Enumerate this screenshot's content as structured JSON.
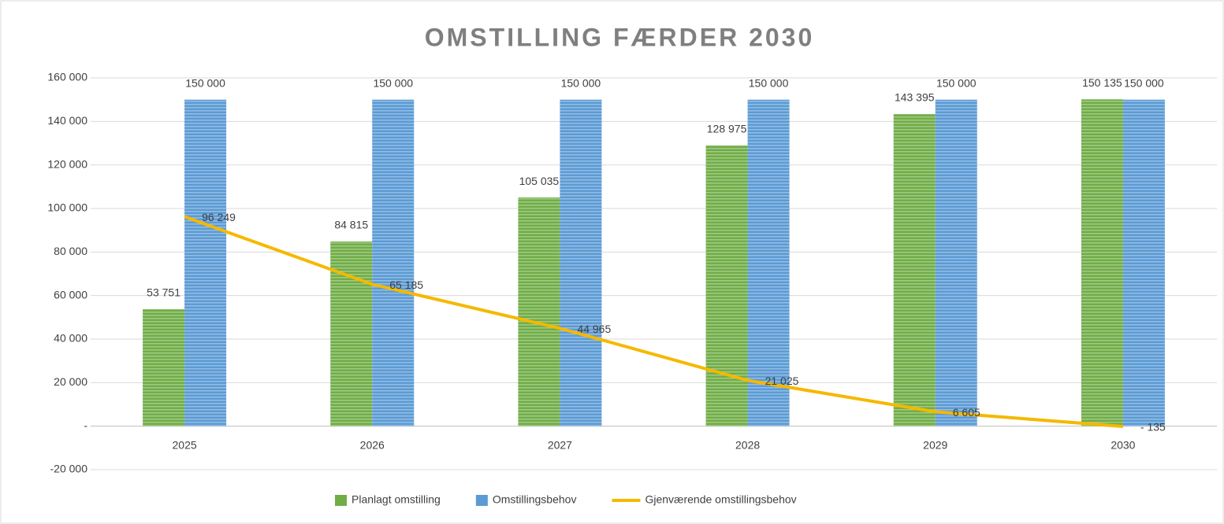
{
  "chart_data": {
    "type": "bar",
    "title": "OMSTILLING FÆRDER 2030",
    "categories": [
      "2025",
      "2026",
      "2027",
      "2028",
      "2029",
      "2030"
    ],
    "series": [
      {
        "name": "Planlagt omstilling",
        "type": "bar",
        "color": "#70ad47",
        "values": [
          53751,
          84815,
          105035,
          128975,
          143395,
          150135
        ],
        "value_labels": [
          "53 751",
          "84 815",
          "105 035",
          "128 975",
          "143 395",
          "150 135"
        ]
      },
      {
        "name": "Omstillingsbehov",
        "type": "bar",
        "color": "#5b9bd5",
        "values": [
          150000,
          150000,
          150000,
          150000,
          150000,
          150000
        ],
        "value_labels": [
          "150 000",
          "150 000",
          "150 000",
          "150 000",
          "150 000",
          "150 000"
        ]
      },
      {
        "name": "Gjenværende omstillingsbehov",
        "type": "line",
        "color": "#f5b800",
        "values": [
          96249,
          65185,
          44965,
          21025,
          6605,
          -135
        ],
        "value_labels": [
          "96 249",
          "65 185",
          "44 965",
          "21 025",
          "6 605",
          "- 135"
        ]
      }
    ],
    "ylim": [
      -20000,
      160000
    ],
    "yticks": [
      {
        "value": -20000,
        "label": "-20 000"
      },
      {
        "value": 0,
        "label": "-"
      },
      {
        "value": 20000,
        "label": "20 000"
      },
      {
        "value": 40000,
        "label": "40 000"
      },
      {
        "value": 60000,
        "label": "60 000"
      },
      {
        "value": 80000,
        "label": "80 000"
      },
      {
        "value": 100000,
        "label": "100 000"
      },
      {
        "value": 120000,
        "label": "120 000"
      },
      {
        "value": 140000,
        "label": "140 000"
      },
      {
        "value": 160000,
        "label": "160 000"
      }
    ],
    "grid": true,
    "legend": "bottom"
  }
}
